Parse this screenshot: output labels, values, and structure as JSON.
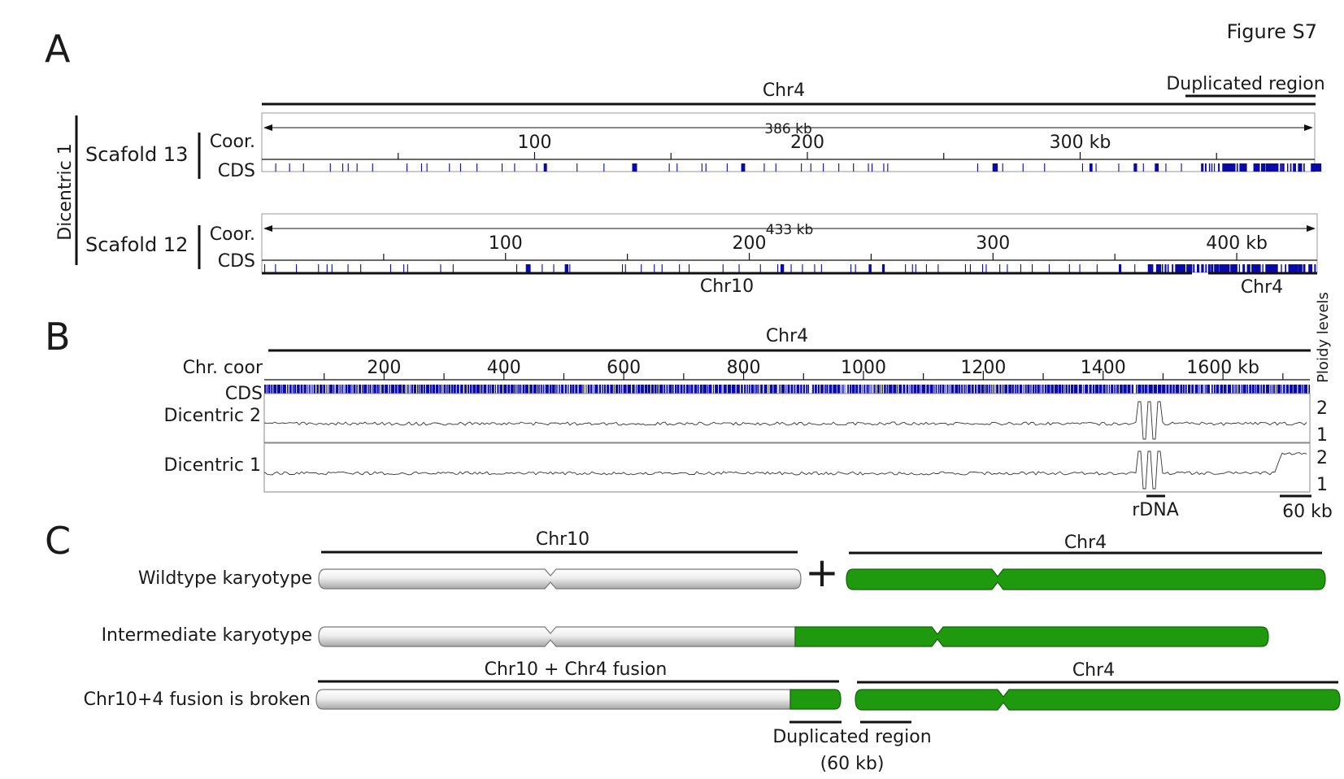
{
  "figure_label": "Figure S7",
  "panels": {
    "a": "A",
    "b": "B",
    "c": "C"
  },
  "colors": {
    "cds": "#0a0aa8",
    "chr4": "#1f9a0f",
    "chr10_light": "#f4f4f4",
    "chr10_dark": "#b5b5b5",
    "line": "#111111"
  },
  "panel_a": {
    "top_label": "Chr4",
    "dup_label": "Duplicated region",
    "group_label": "Dicentric 1",
    "track_coor": "Coor.",
    "track_cds": "CDS",
    "s13": {
      "name": "Scafold 13",
      "length_label": "386 kb",
      "length_kb": 386,
      "ticks": [
        {
          "kb": 100,
          "label": "100"
        },
        {
          "kb": 200,
          "label": "200"
        },
        {
          "kb": 300,
          "label": "300 kb"
        }
      ],
      "dense_kb": [
        342,
        386
      ]
    },
    "s12": {
      "name": "Scafold 12",
      "length_label": "433 kb",
      "length_kb": 433,
      "ticks": [
        {
          "kb": 100,
          "label": "100"
        },
        {
          "kb": 200,
          "label": "200"
        },
        {
          "kb": 300,
          "label": "300"
        },
        {
          "kb": 400,
          "label": "400 kb"
        }
      ],
      "dense_kb": [
        359,
        433
      ]
    },
    "bottom_left_label": "Chr10",
    "bottom_right_label": "Chr4"
  },
  "panel_b": {
    "top_label": "Chr4",
    "coor_label": "Chr. coor",
    "cds_label": "CDS",
    "ploidy_label": "Ploidy levels",
    "chr_length_kb": 1745,
    "ticks": [
      {
        "kb": 200,
        "label": "200"
      },
      {
        "kb": 400,
        "label": "400"
      },
      {
        "kb": 600,
        "label": "600"
      },
      {
        "kb": 800,
        "label": "800"
      },
      {
        "kb": 1000,
        "label": "1000"
      },
      {
        "kb": 1200,
        "label": "1200"
      },
      {
        "kb": 1400,
        "label": "1400"
      },
      {
        "kb": 1600,
        "label": "1600 kb"
      }
    ],
    "tracks": [
      {
        "name": "Dicentric 2",
        "ploidy_high": "2",
        "ploidy_low": "1",
        "dup": false
      },
      {
        "name": "Dicentric 1",
        "ploidy_high": "2",
        "ploidy_low": "1",
        "dup": true
      }
    ],
    "rdna_label": "rDNA",
    "scale_label": "60 kb"
  },
  "panel_c": {
    "plus": "+",
    "rows": [
      {
        "label": "Wildtype karyotype",
        "over_left": "Chr10",
        "over_right": "Chr4"
      },
      {
        "label": "Intermediate karyotype"
      },
      {
        "label": "Chr10+4 fusion is broken",
        "over_left": "Chr10 + Chr4 fusion",
        "over_right": "Chr4"
      }
    ],
    "dup_label_1": "Duplicated region",
    "dup_label_2": "(60 kb)"
  }
}
